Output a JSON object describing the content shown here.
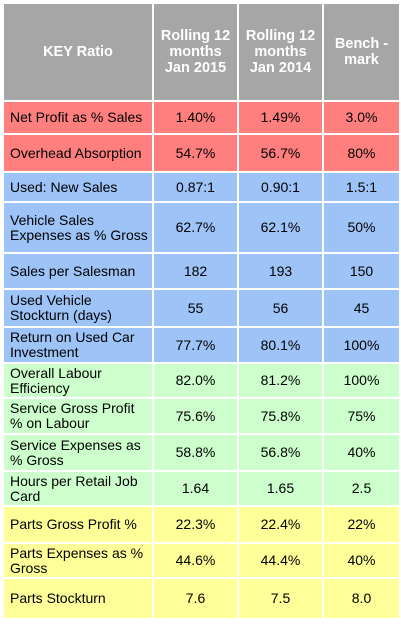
{
  "headers": [
    "KEY Ratio",
    "Rolling 12 months Jan 2015",
    "Rolling 12 months Jan 2014",
    "Bench -mark"
  ],
  "colors": {
    "header": "#a6a6a6",
    "red": "#ff7f7f",
    "blue": "#9dc3f7",
    "green": "#ccffcc",
    "yellow": "#ffff99"
  },
  "rows": [
    {
      "label": "Net Profit as % Sales",
      "v2015": "1.40%",
      "v2014": "1.49%",
      "bench": "3.0%",
      "group": "red",
      "h": 33
    },
    {
      "label": "Overhead Absorption",
      "v2015": "54.7%",
      "v2014": "56.7%",
      "bench": "80%",
      "group": "red",
      "h": 38
    },
    {
      "label": "Used: New Sales",
      "v2015": "0.87:1",
      "v2014": "0.90:1",
      "bench": "1.5:1",
      "group": "blue",
      "h": 30
    },
    {
      "label": "Vehicle Sales Expenses as % Gross",
      "v2015": "62.7%",
      "v2014": "62.1%",
      "bench": "50%",
      "group": "blue",
      "h": 51
    },
    {
      "label": "Sales per Salesman",
      "v2015": "182",
      "v2014": "193",
      "bench": "150",
      "group": "blue",
      "h": 36
    },
    {
      "label": "Used Vehicle Stockturn (days)",
      "v2015": "55",
      "v2014": "56",
      "bench": "45",
      "group": "blue",
      "h": 38
    },
    {
      "label": "Return on Used Car Investment",
      "v2015": "77.7%",
      "v2014": "80.1%",
      "bench": "100%",
      "group": "blue",
      "h": 36
    },
    {
      "label": "Overall Labour Efficiency",
      "v2015": "82.0%",
      "v2014": "81.2%",
      "bench": "100%",
      "group": "green",
      "h": 35
    },
    {
      "label": "Service Gross Profit % on Labour",
      "v2015": "75.6%",
      "v2014": "75.8%",
      "bench": "75%",
      "group": "green",
      "h": 36
    },
    {
      "label": "Service Expenses as % Gross",
      "v2015": "58.8%",
      "v2014": "56.8%",
      "bench": "40%",
      "group": "green",
      "h": 37
    },
    {
      "label": "Hours per Retail Job Card",
      "v2015": "1.64",
      "v2014": "1.65",
      "bench": "2.5",
      "group": "green",
      "h": 35
    },
    {
      "label": "Parts Gross Profit %",
      "v2015": "22.3%",
      "v2014": "22.4%",
      "bench": "22%",
      "group": "yellow",
      "h": 37
    },
    {
      "label": "Parts Expenses as % Gross",
      "v2015": "44.6%",
      "v2014": "44.4%",
      "bench": "40%",
      "group": "yellow",
      "h": 35
    },
    {
      "label": "Parts Stockturn",
      "v2015": "7.6",
      "v2014": "7.5",
      "bench": "8.0",
      "group": "yellow",
      "h": 41
    }
  ]
}
